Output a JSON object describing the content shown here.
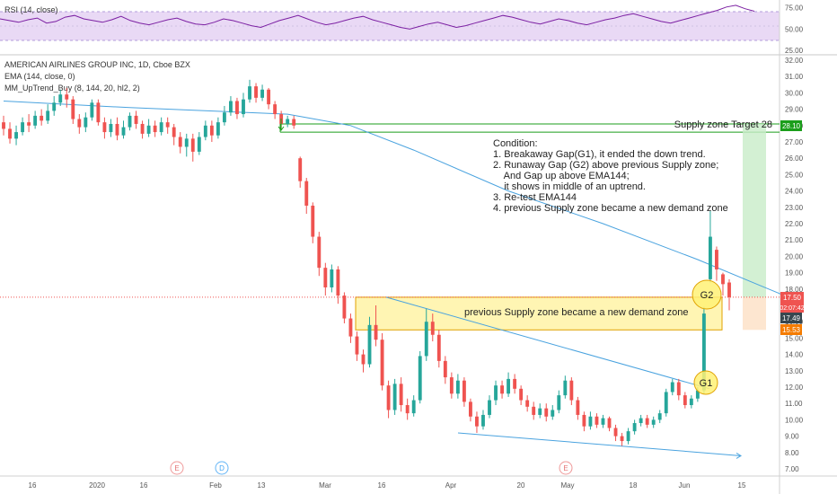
{
  "panes": {
    "rsi_title": "RSI (14, close)",
    "main_title": "AMERICAN AIRLINES GROUP INC, 1D, Cboe BZX",
    "ema_label": "EMA (144, close, 0)",
    "indicator_label": "MM_UpTrend_Buy (8, 144, 20, hl2, 2)"
  },
  "rsi_axis": [
    "75.00",
    "50.00",
    "25.00"
  ],
  "price_axis": [
    "32.00",
    "31.00",
    "30.00",
    "29.00",
    "28.00",
    "27.00",
    "26.00",
    "25.00",
    "24.00",
    "23.00",
    "22.00",
    "21.00",
    "20.00",
    "19.00",
    "18.00",
    "17.00",
    "16.00",
    "15.00",
    "14.00",
    "13.00",
    "12.00",
    "11.00",
    "10.00",
    "9.00",
    "8.00",
    "7.00"
  ],
  "badges": {
    "target": "28.10",
    "current": "17.50",
    "countdown": "02:07:42",
    "dark": "17.49",
    "stop": "15.53"
  },
  "x_axis": [
    "16",
    "2020",
    "16",
    "Feb",
    "13",
    "Mar",
    "16",
    "Apr",
    "20",
    "May",
    "18",
    "Jun",
    "15"
  ],
  "events": [
    "E",
    "D",
    "E"
  ],
  "annotations": {
    "supply_target": "Supply zone Target 28",
    "demand_zone": "previous Supply zone became a new demand zone",
    "g1": "G1",
    "g2": "G2",
    "conditions": [
      "Condition:",
      "1. Breakaway Gap(G1), it ended the down trend.",
      "2. Runaway Gap (G2) above previous Supply zone;",
      "    And Gap up above EMA144;",
      "    it shows in middle of an uptrend.",
      "3. Re-test EMA144",
      "4. previous Supply zone became a new demand zone"
    ]
  },
  "colors": {
    "up": "#26a69a",
    "down": "#ef5350",
    "ema": "#4aa3df",
    "rsi": "#7b1fa2",
    "rsi_band": "#e9d9f5",
    "target_green": "#1b9e1b",
    "zone_fill": "#fff3a6",
    "zone_border": "#e0a100"
  },
  "chart_data": {
    "type": "candlestick",
    "price_ylim": [
      7,
      32
    ],
    "rsi_ylim": [
      25,
      80
    ],
    "candles": [
      {
        "o": 28.2,
        "c": 27.8,
        "h": 28.6,
        "l": 27.4
      },
      {
        "o": 27.8,
        "c": 27.2,
        "h": 28.2,
        "l": 26.9
      },
      {
        "o": 27.2,
        "c": 27.6,
        "h": 28.0,
        "l": 26.8
      },
      {
        "o": 27.6,
        "c": 28.2,
        "h": 28.5,
        "l": 27.4
      },
      {
        "o": 28.2,
        "c": 28.0,
        "h": 28.7,
        "l": 27.6
      },
      {
        "o": 28.0,
        "c": 28.6,
        "h": 28.9,
        "l": 27.8
      },
      {
        "o": 28.6,
        "c": 28.3,
        "h": 29.0,
        "l": 28.0
      },
      {
        "o": 28.3,
        "c": 28.9,
        "h": 29.3,
        "l": 28.1
      },
      {
        "o": 28.9,
        "c": 29.4,
        "h": 29.8,
        "l": 28.6
      },
      {
        "o": 29.4,
        "c": 29.9,
        "h": 30.2,
        "l": 29.2
      },
      {
        "o": 29.9,
        "c": 29.6,
        "h": 30.3,
        "l": 29.1
      },
      {
        "o": 29.6,
        "c": 28.4,
        "h": 29.8,
        "l": 28.1
      },
      {
        "o": 28.4,
        "c": 27.9,
        "h": 28.7,
        "l": 27.5
      },
      {
        "o": 27.9,
        "c": 28.5,
        "h": 28.8,
        "l": 27.6
      },
      {
        "o": 28.5,
        "c": 29.4,
        "h": 29.6,
        "l": 28.3
      },
      {
        "o": 29.4,
        "c": 28.2,
        "h": 29.6,
        "l": 28.0
      },
      {
        "o": 28.2,
        "c": 27.6,
        "h": 28.5,
        "l": 27.2
      },
      {
        "o": 27.6,
        "c": 28.1,
        "h": 28.4,
        "l": 27.3
      },
      {
        "o": 28.1,
        "c": 27.4,
        "h": 28.5,
        "l": 27.1
      },
      {
        "o": 27.4,
        "c": 27.9,
        "h": 28.3,
        "l": 27.2
      },
      {
        "o": 27.9,
        "c": 28.6,
        "h": 28.8,
        "l": 27.7
      },
      {
        "o": 28.6,
        "c": 28.1,
        "h": 28.9,
        "l": 27.8
      },
      {
        "o": 28.1,
        "c": 27.5,
        "h": 28.3,
        "l": 27.2
      },
      {
        "o": 27.5,
        "c": 28.0,
        "h": 28.4,
        "l": 27.3
      },
      {
        "o": 28.0,
        "c": 27.6,
        "h": 28.3,
        "l": 27.3
      },
      {
        "o": 27.6,
        "c": 28.2,
        "h": 28.5,
        "l": 27.4
      },
      {
        "o": 28.2,
        "c": 27.9,
        "h": 28.5,
        "l": 27.5
      },
      {
        "o": 27.9,
        "c": 27.3,
        "h": 28.1,
        "l": 26.8
      },
      {
        "o": 27.3,
        "c": 26.7,
        "h": 27.6,
        "l": 26.3
      },
      {
        "o": 26.7,
        "c": 27.2,
        "h": 27.5,
        "l": 26.1
      },
      {
        "o": 27.2,
        "c": 26.4,
        "h": 27.5,
        "l": 25.8
      },
      {
        "o": 26.4,
        "c": 27.3,
        "h": 27.6,
        "l": 26.2
      },
      {
        "o": 27.3,
        "c": 28.0,
        "h": 28.3,
        "l": 27.1
      },
      {
        "o": 28.0,
        "c": 27.4,
        "h": 28.3,
        "l": 27.0
      },
      {
        "o": 27.4,
        "c": 28.2,
        "h": 28.5,
        "l": 27.2
      },
      {
        "o": 28.2,
        "c": 28.8,
        "h": 29.2,
        "l": 28.0
      },
      {
        "o": 28.8,
        "c": 29.5,
        "h": 29.8,
        "l": 28.6
      },
      {
        "o": 29.5,
        "c": 28.7,
        "h": 29.7,
        "l": 28.4
      },
      {
        "o": 28.7,
        "c": 29.6,
        "h": 30.0,
        "l": 28.5
      },
      {
        "o": 29.6,
        "c": 30.4,
        "h": 30.8,
        "l": 29.4
      },
      {
        "o": 30.4,
        "c": 29.7,
        "h": 30.6,
        "l": 29.4
      },
      {
        "o": 29.7,
        "c": 30.2,
        "h": 30.5,
        "l": 29.5
      },
      {
        "o": 30.2,
        "c": 29.3,
        "h": 30.3,
        "l": 29.0
      },
      {
        "o": 29.3,
        "c": 28.7,
        "h": 29.5,
        "l": 28.4
      },
      {
        "o": 28.7,
        "c": 28.1,
        "h": 28.9,
        "l": 27.8
      },
      {
        "o": 28.1,
        "c": 28.4,
        "h": 28.6,
        "l": 27.9
      },
      {
        "o": 28.4,
        "c": 28.0,
        "h": 28.6,
        "l": 27.8
      },
      {
        "o": 26.0,
        "c": 24.6,
        "h": 26.1,
        "l": 24.2
      },
      {
        "o": 24.6,
        "c": 23.1,
        "h": 24.8,
        "l": 22.6
      },
      {
        "o": 23.1,
        "c": 21.2,
        "h": 23.3,
        "l": 20.8
      },
      {
        "o": 21.2,
        "c": 19.3,
        "h": 21.5,
        "l": 18.8
      },
      {
        "o": 19.3,
        "c": 18.1,
        "h": 19.6,
        "l": 17.6
      },
      {
        "o": 18.1,
        "c": 19.2,
        "h": 19.5,
        "l": 17.8
      },
      {
        "o": 19.2,
        "c": 17.6,
        "h": 19.4,
        "l": 17.1
      },
      {
        "o": 17.6,
        "c": 16.2,
        "h": 17.8,
        "l": 15.9
      },
      {
        "o": 16.2,
        "c": 15.1,
        "h": 16.5,
        "l": 14.7
      },
      {
        "o": 15.1,
        "c": 14.0,
        "h": 15.4,
        "l": 13.6
      },
      {
        "o": 14.0,
        "c": 13.4,
        "h": 14.3,
        "l": 12.9
      },
      {
        "o": 13.4,
        "c": 15.8,
        "h": 16.3,
        "l": 13.2
      },
      {
        "o": 15.8,
        "c": 14.9,
        "h": 17.0,
        "l": 14.5
      },
      {
        "o": 14.9,
        "c": 12.1,
        "h": 15.3,
        "l": 11.8
      },
      {
        "o": 12.1,
        "c": 10.6,
        "h": 12.4,
        "l": 10.1
      },
      {
        "o": 10.6,
        "c": 12.2,
        "h": 12.5,
        "l": 10.3
      },
      {
        "o": 12.2,
        "c": 10.9,
        "h": 12.6,
        "l": 10.5
      },
      {
        "o": 10.9,
        "c": 10.4,
        "h": 11.3,
        "l": 10.0
      },
      {
        "o": 10.4,
        "c": 11.2,
        "h": 11.5,
        "l": 10.2
      },
      {
        "o": 11.2,
        "c": 13.9,
        "h": 14.2,
        "l": 11.0
      },
      {
        "o": 13.9,
        "c": 16.0,
        "h": 16.8,
        "l": 13.6
      },
      {
        "o": 16.0,
        "c": 15.2,
        "h": 16.5,
        "l": 14.8
      },
      {
        "o": 15.2,
        "c": 13.6,
        "h": 15.5,
        "l": 13.2
      },
      {
        "o": 13.6,
        "c": 12.6,
        "h": 13.9,
        "l": 12.2
      },
      {
        "o": 12.6,
        "c": 11.6,
        "h": 12.9,
        "l": 11.3
      },
      {
        "o": 11.6,
        "c": 12.4,
        "h": 12.8,
        "l": 11.3
      },
      {
        "o": 12.4,
        "c": 11.1,
        "h": 12.6,
        "l": 10.8
      },
      {
        "o": 11.1,
        "c": 10.2,
        "h": 11.3,
        "l": 9.9
      },
      {
        "o": 10.2,
        "c": 9.6,
        "h": 10.5,
        "l": 9.2
      },
      {
        "o": 9.6,
        "c": 10.3,
        "h": 10.6,
        "l": 9.4
      },
      {
        "o": 10.3,
        "c": 11.2,
        "h": 11.5,
        "l": 10.1
      },
      {
        "o": 11.2,
        "c": 12.1,
        "h": 12.4,
        "l": 10.9
      },
      {
        "o": 12.1,
        "c": 11.6,
        "h": 12.4,
        "l": 11.3
      },
      {
        "o": 11.6,
        "c": 12.5,
        "h": 12.9,
        "l": 11.4
      },
      {
        "o": 12.5,
        "c": 11.9,
        "h": 12.8,
        "l": 11.6
      },
      {
        "o": 11.9,
        "c": 11.2,
        "h": 12.1,
        "l": 10.9
      },
      {
        "o": 11.2,
        "c": 10.8,
        "h": 11.5,
        "l": 10.5
      },
      {
        "o": 10.8,
        "c": 10.3,
        "h": 11.1,
        "l": 10.0
      },
      {
        "o": 10.3,
        "c": 10.7,
        "h": 11.0,
        "l": 10.1
      },
      {
        "o": 10.7,
        "c": 10.2,
        "h": 11.0,
        "l": 9.9
      },
      {
        "o": 10.2,
        "c": 10.6,
        "h": 10.9,
        "l": 10.0
      },
      {
        "o": 10.6,
        "c": 11.5,
        "h": 11.8,
        "l": 10.4
      },
      {
        "o": 11.5,
        "c": 12.4,
        "h": 12.7,
        "l": 11.3
      },
      {
        "o": 12.4,
        "c": 11.2,
        "h": 12.6,
        "l": 10.9
      },
      {
        "o": 11.2,
        "c": 10.3,
        "h": 11.4,
        "l": 10.0
      },
      {
        "o": 10.3,
        "c": 9.6,
        "h": 10.5,
        "l": 9.3
      },
      {
        "o": 9.6,
        "c": 10.2,
        "h": 10.5,
        "l": 9.4
      },
      {
        "o": 10.2,
        "c": 9.7,
        "h": 10.4,
        "l": 9.5
      },
      {
        "o": 9.7,
        "c": 10.1,
        "h": 10.3,
        "l": 9.5
      },
      {
        "o": 10.1,
        "c": 9.5,
        "h": 10.2,
        "l": 9.3
      },
      {
        "o": 9.5,
        "c": 9.0,
        "h": 9.7,
        "l": 8.7
      },
      {
        "o": 9.0,
        "c": 8.7,
        "h": 9.2,
        "l": 8.4
      },
      {
        "o": 8.7,
        "c": 9.3,
        "h": 9.5,
        "l": 8.5
      },
      {
        "o": 9.3,
        "c": 9.8,
        "h": 10.0,
        "l": 9.1
      },
      {
        "o": 9.8,
        "c": 10.1,
        "h": 10.3,
        "l": 9.6
      },
      {
        "o": 10.1,
        "c": 9.7,
        "h": 10.3,
        "l": 9.5
      },
      {
        "o": 9.7,
        "c": 10.0,
        "h": 10.2,
        "l": 9.5
      },
      {
        "o": 10.0,
        "c": 10.4,
        "h": 10.6,
        "l": 9.8
      },
      {
        "o": 10.4,
        "c": 11.7,
        "h": 11.9,
        "l": 10.2
      },
      {
        "o": 11.7,
        "c": 12.3,
        "h": 12.5,
        "l": 11.5
      },
      {
        "o": 12.3,
        "c": 11.5,
        "h": 12.5,
        "l": 11.2
      },
      {
        "o": 11.5,
        "c": 10.9,
        "h": 11.7,
        "l": 10.7
      },
      {
        "o": 10.9,
        "c": 11.3,
        "h": 11.5,
        "l": 10.7
      },
      {
        "o": 11.3,
        "c": 11.8,
        "h": 12.0,
        "l": 11.1
      },
      {
        "o": 11.8,
        "c": 16.5,
        "h": 16.9,
        "l": 11.6
      },
      {
        "o": 18.6,
        "c": 21.2,
        "h": 22.8,
        "l": 18.4
      },
      {
        "o": 20.4,
        "c": 19.2,
        "h": 20.6,
        "l": 18.5
      },
      {
        "o": 18.9,
        "c": 18.3,
        "h": 19.0,
        "l": 17.6
      },
      {
        "o": 18.4,
        "c": 17.5,
        "h": 18.6,
        "l": 16.7
      }
    ],
    "ema144": [
      [
        0,
        29.5
      ],
      [
        20,
        29.1
      ],
      [
        45,
        28.7
      ],
      [
        55,
        28.0
      ],
      [
        65,
        26.5
      ],
      [
        80,
        24.0
      ],
      [
        95,
        22.0
      ],
      [
        110,
        19.8
      ],
      [
        120,
        18.2
      ],
      [
        125,
        17.4
      ]
    ],
    "rsi": [
      62,
      60,
      58,
      61,
      63,
      57,
      59,
      64,
      66,
      62,
      60,
      58,
      61,
      65,
      60,
      57,
      55,
      58,
      61,
      63,
      59,
      56,
      55,
      58,
      62,
      60,
      57,
      54,
      52,
      56,
      60,
      63,
      66,
      62,
      58,
      55,
      57,
      60,
      63,
      65,
      61,
      58,
      55,
      52,
      50,
      53,
      56,
      58,
      55,
      52,
      54,
      57,
      60,
      63,
      66,
      64,
      61,
      58,
      56,
      59,
      62,
      60,
      57,
      55,
      58,
      61,
      63,
      66,
      68,
      65,
      62,
      59,
      57,
      60,
      63,
      66,
      69,
      72,
      76,
      78,
      74,
      71
    ],
    "supply_target_zone": [
      28.1,
      27.6
    ],
    "demand_zone": [
      17.5,
      15.5
    ],
    "trend_upper": [
      [
        58,
        17.5
      ],
      [
        120,
        11.9
      ]
    ],
    "trend_lower": [
      [
        74,
        9.2
      ],
      [
        128,
        7.8
      ]
    ]
  }
}
